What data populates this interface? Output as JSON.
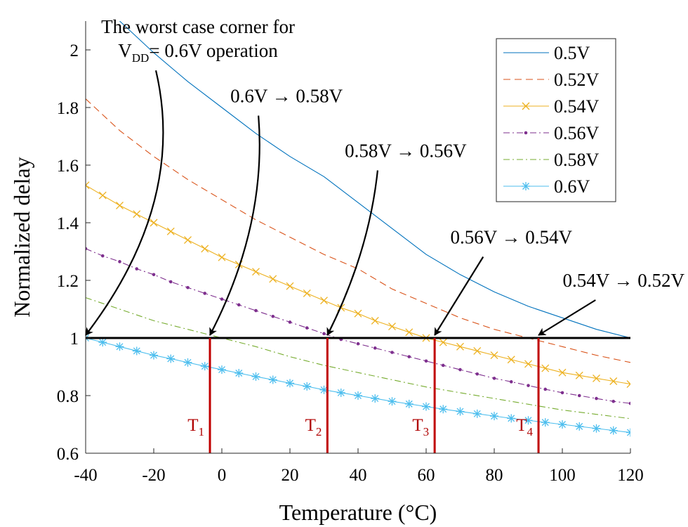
{
  "chart_data": {
    "type": "line",
    "title": "",
    "xlabel": "Temperature (°C)",
    "ylabel": "Normalized delay",
    "xlim": [
      -40,
      120
    ],
    "ylim": [
      0.6,
      2.1
    ],
    "xticks": [
      "-40",
      "-20",
      "0",
      "20",
      "40",
      "60",
      "80",
      "100",
      "120"
    ],
    "yticks": [
      "0.6",
      "0.8",
      "1",
      "1.2",
      "1.4",
      "1.6",
      "1.8",
      "2"
    ],
    "legend_position": "top-right",
    "grid": false,
    "series": [
      {
        "name": "0.5V",
        "color": "#0072BD",
        "style": "solid",
        "x": [
          -30,
          -20,
          -10,
          0,
          10,
          20,
          30,
          40,
          50,
          60,
          70,
          80,
          90,
          100,
          110,
          120
        ],
        "y": [
          2.1,
          1.99,
          1.89,
          1.8,
          1.71,
          1.63,
          1.56,
          1.47,
          1.38,
          1.29,
          1.22,
          1.16,
          1.11,
          1.07,
          1.03,
          1.0
        ]
      },
      {
        "name": "0.52V",
        "color": "#D95319",
        "style": "dashed",
        "x": [
          -40,
          -30,
          -20,
          -10,
          0,
          10,
          20,
          30,
          40,
          50,
          60,
          70,
          80,
          90,
          100,
          110,
          120
        ],
        "y": [
          1.83,
          1.72,
          1.63,
          1.55,
          1.48,
          1.41,
          1.35,
          1.29,
          1.24,
          1.17,
          1.12,
          1.07,
          1.03,
          1.0,
          0.97,
          0.94,
          0.915
        ]
      },
      {
        "name": "0.54V",
        "color": "#EDB120",
        "style": "solid",
        "marker": "x",
        "x": [
          -40,
          -35,
          -30,
          -25,
          -20,
          -15,
          -10,
          -5,
          0,
          5,
          10,
          15,
          20,
          25,
          30,
          35,
          40,
          45,
          50,
          55,
          60,
          65,
          70,
          75,
          80,
          85,
          90,
          95,
          100,
          105,
          110,
          115,
          120
        ],
        "y": [
          1.53,
          1.495,
          1.46,
          1.43,
          1.4,
          1.37,
          1.34,
          1.31,
          1.28,
          1.255,
          1.23,
          1.205,
          1.18,
          1.155,
          1.13,
          1.105,
          1.085,
          1.06,
          1.04,
          1.02,
          1.0,
          0.985,
          0.97,
          0.955,
          0.94,
          0.925,
          0.91,
          0.895,
          0.88,
          0.87,
          0.86,
          0.85,
          0.84
        ]
      },
      {
        "name": "0.56V",
        "color": "#7E2F8E",
        "style": "dashdot",
        "marker": "dot",
        "x": [
          -40,
          -35,
          -30,
          -25,
          -20,
          -15,
          -10,
          -5,
          0,
          5,
          10,
          15,
          20,
          25,
          30,
          35,
          40,
          45,
          50,
          55,
          60,
          65,
          70,
          75,
          80,
          85,
          90,
          95,
          100,
          105,
          110,
          115,
          120
        ],
        "y": [
          1.31,
          1.285,
          1.265,
          1.24,
          1.22,
          1.195,
          1.175,
          1.155,
          1.135,
          1.115,
          1.095,
          1.075,
          1.055,
          1.035,
          1.015,
          0.995,
          0.98,
          0.965,
          0.95,
          0.935,
          0.92,
          0.905,
          0.89,
          0.875,
          0.86,
          0.848,
          0.835,
          0.822,
          0.81,
          0.8,
          0.79,
          0.78,
          0.773
        ]
      },
      {
        "name": "0.58V",
        "color": "#77AC30",
        "style": "dashdot",
        "x": [
          -40,
          -30,
          -20,
          -10,
          0,
          10,
          20,
          30,
          40,
          50,
          60,
          70,
          80,
          90,
          100,
          110,
          120
        ],
        "y": [
          1.14,
          1.1,
          1.06,
          1.03,
          1.0,
          0.97,
          0.935,
          0.905,
          0.88,
          0.855,
          0.83,
          0.81,
          0.79,
          0.77,
          0.75,
          0.735,
          0.72
        ]
      },
      {
        "name": "0.6V",
        "color": "#4DBEEE",
        "style": "solid",
        "marker": "star",
        "x": [
          -40,
          -35,
          -30,
          -25,
          -20,
          -15,
          -10,
          -5,
          0,
          5,
          10,
          15,
          20,
          25,
          30,
          35,
          40,
          45,
          50,
          55,
          60,
          65,
          70,
          75,
          80,
          85,
          90,
          95,
          100,
          105,
          110,
          115,
          120
        ],
        "y": [
          1.0,
          0.985,
          0.97,
          0.955,
          0.94,
          0.928,
          0.915,
          0.902,
          0.89,
          0.878,
          0.866,
          0.855,
          0.843,
          0.832,
          0.82,
          0.81,
          0.8,
          0.79,
          0.78,
          0.771,
          0.762,
          0.753,
          0.745,
          0.737,
          0.729,
          0.721,
          0.714,
          0.707,
          0.7,
          0.693,
          0.686,
          0.679,
          0.672
        ]
      }
    ],
    "reference_line": {
      "y": 1.0,
      "x": [
        -40,
        120
      ]
    },
    "transition_lines": [
      {
        "x": -3.5,
        "label": "T",
        "subscript": "1",
        "label_y": 0.7
      },
      {
        "x": 31,
        "label": "T",
        "subscript": "2",
        "label_y": 0.7
      },
      {
        "x": 62.5,
        "label": "T",
        "subscript": "3",
        "label_y": 0.7
      },
      {
        "x": 93,
        "label": "T",
        "subscript": "4",
        "label_y": 0.7
      }
    ],
    "annotations": [
      {
        "lines": [
          [
            "The worst case corner for"
          ],
          [
            "V",
            "DD",
            "= 0.6V operation"
          ]
        ],
        "text_x": -7,
        "text_y": 2.08,
        "target_x": -40,
        "target_y": 1.0,
        "curve": -0.25
      },
      {
        "lines": [
          [
            "0.6V → 0.58V"
          ]
        ],
        "text_x": 19,
        "text_y": 1.84,
        "target_x": -3.5,
        "target_y": 1.0,
        "curve": -0.15
      },
      {
        "lines": [
          [
            "0.58V → 0.56V"
          ]
        ],
        "text_x": 54,
        "text_y": 1.65,
        "target_x": 31,
        "target_y": 1.0,
        "curve": -0.1
      },
      {
        "lines": [
          [
            "0.56V → 0.54V"
          ]
        ],
        "text_x": 85,
        "text_y": 1.35,
        "target_x": 62.5,
        "target_y": 1.0,
        "curve": 0.0
      },
      {
        "lines": [
          [
            "0.54V → 0.52V"
          ]
        ],
        "text_x": 118,
        "text_y": 1.2,
        "target_x": 93,
        "target_y": 1.0,
        "curve": 0.0
      }
    ]
  }
}
